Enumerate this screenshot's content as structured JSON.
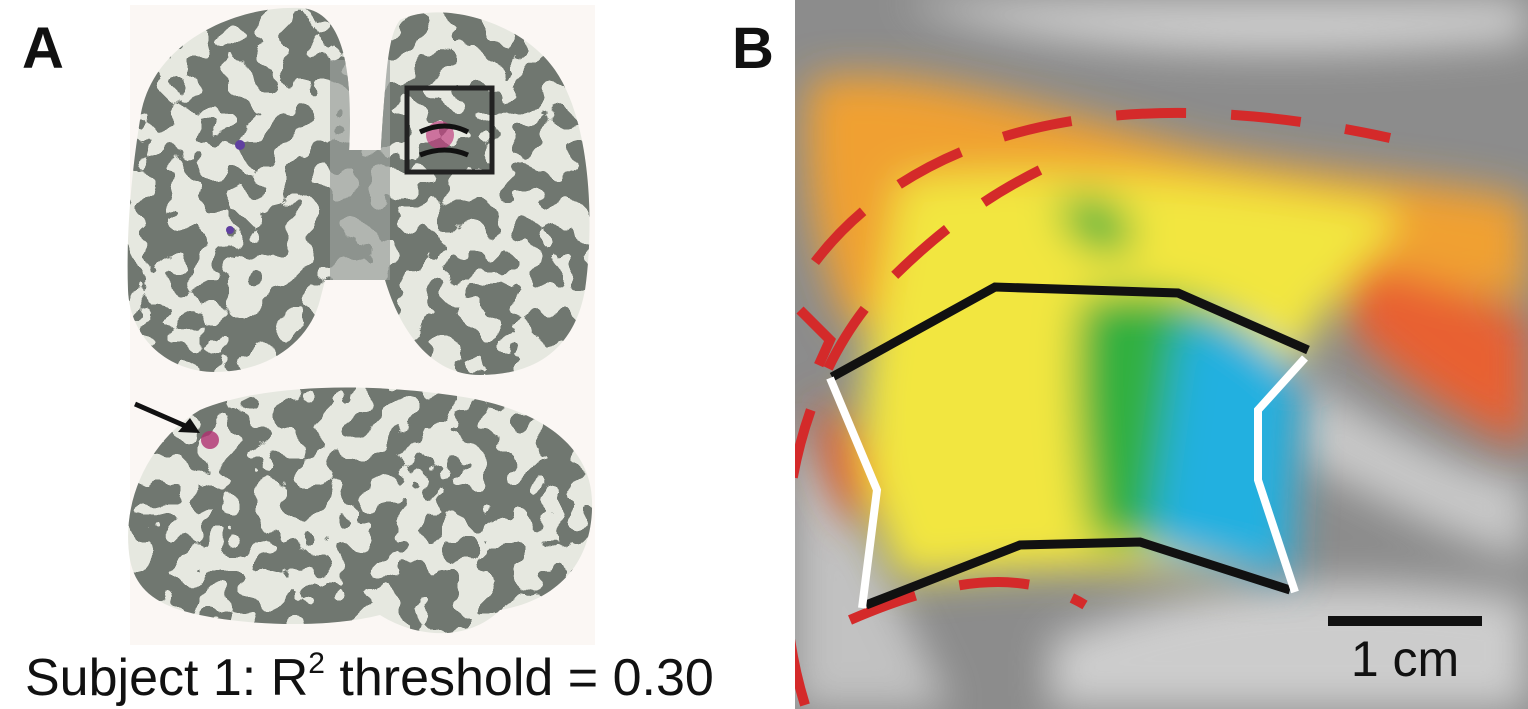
{
  "panels": [
    {
      "label": "A"
    },
    {
      "label": "B"
    }
  ],
  "caption": {
    "prefix": "Subject 1: R",
    "superscript": "2",
    "suffix": " threshold = 0.30"
  },
  "scale_bar": {
    "label": "1 cm"
  }
}
